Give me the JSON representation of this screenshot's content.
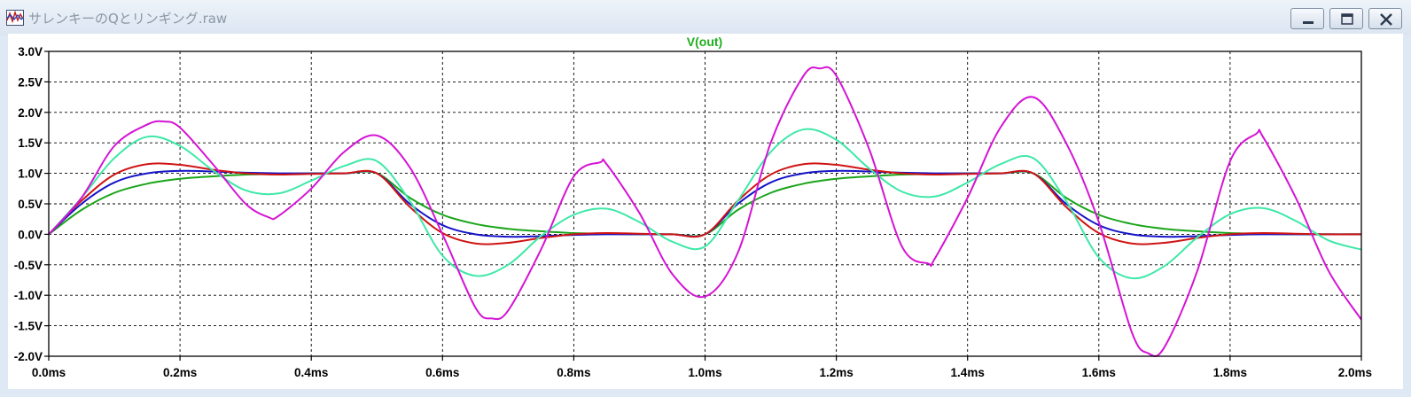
{
  "window": {
    "title": "サレンキーのQとリンギング.raw",
    "buttons": {
      "minimize": "minimize-icon",
      "maximize": "maximize-icon",
      "close": "close-icon"
    }
  },
  "chart_data": {
    "type": "line",
    "title": "V(out)",
    "title_color": "#1fae1f",
    "xlabel": "",
    "ylabel": "",
    "xlim": [
      0,
      2.0
    ],
    "ylim": [
      -2.0,
      3.0
    ],
    "x_ticks": [
      "0.0ms",
      "0.2ms",
      "0.4ms",
      "0.6ms",
      "0.8ms",
      "1.0ms",
      "1.2ms",
      "1.4ms",
      "1.6ms",
      "1.8ms",
      "2.0ms"
    ],
    "y_ticks": [
      "3.0V",
      "2.5V",
      "2.0V",
      "1.5V",
      "1.0V",
      "0.5V",
      "0.0V",
      "-0.5V",
      "-1.0V",
      "-1.5V",
      "-2.0V"
    ],
    "grid": true,
    "series": [
      {
        "color": "#1aa51a",
        "x": [
          0,
          0.05,
          0.1,
          0.15,
          0.2,
          0.25,
          0.3,
          0.35,
          0.4,
          0.45,
          0.5,
          0.55,
          0.6,
          0.65,
          0.7,
          0.75,
          0.8,
          0.85,
          0.9,
          0.95,
          1.0,
          1.05,
          1.1,
          1.15,
          1.2,
          1.25,
          1.3,
          1.35,
          1.4,
          1.45,
          1.5,
          1.55,
          1.6,
          1.65,
          1.7,
          1.75,
          1.8,
          1.85,
          1.9,
          1.95,
          2.0
        ],
        "y": [
          0,
          0.4,
          0.68,
          0.83,
          0.91,
          0.95,
          0.98,
          0.99,
          1.0,
          1.0,
          1.0,
          0.6,
          0.32,
          0.17,
          0.09,
          0.05,
          0.02,
          0.01,
          0.0,
          0.0,
          0.0,
          0.4,
          0.68,
          0.83,
          0.91,
          0.95,
          0.98,
          0.99,
          1.0,
          1.0,
          1.0,
          0.6,
          0.32,
          0.17,
          0.09,
          0.05,
          0.02,
          0.01,
          0.0,
          0.0,
          0.0
        ]
      },
      {
        "color": "#1414c8",
        "x": [
          0,
          0.05,
          0.1,
          0.15,
          0.2,
          0.25,
          0.3,
          0.35,
          0.4,
          0.45,
          0.5,
          0.55,
          0.6,
          0.65,
          0.7,
          0.75,
          0.8,
          0.85,
          0.9,
          0.95,
          1.0,
          1.05,
          1.1,
          1.15,
          1.2,
          1.25,
          1.3,
          1.35,
          1.4,
          1.45,
          1.5,
          1.55,
          1.6,
          1.65,
          1.7,
          1.75,
          1.8,
          1.85,
          1.9,
          1.95,
          2.0
        ],
        "y": [
          0,
          0.5,
          0.85,
          1.0,
          1.04,
          1.03,
          1.01,
          1.0,
          1.0,
          1.0,
          1.0,
          0.5,
          0.15,
          0.0,
          -0.04,
          -0.03,
          -0.01,
          0.0,
          0.0,
          0.0,
          0.0,
          0.5,
          0.85,
          1.0,
          1.04,
          1.03,
          1.01,
          1.0,
          1.0,
          1.0,
          1.0,
          0.5,
          0.15,
          0.0,
          -0.04,
          -0.03,
          -0.01,
          0.0,
          0.0,
          0.0,
          0.0
        ]
      },
      {
        "color": "#d01414",
        "x": [
          0,
          0.05,
          0.1,
          0.15,
          0.2,
          0.25,
          0.3,
          0.35,
          0.4,
          0.45,
          0.5,
          0.55,
          0.6,
          0.65,
          0.7,
          0.75,
          0.8,
          0.85,
          0.9,
          0.95,
          1.0,
          1.05,
          1.1,
          1.15,
          1.2,
          1.25,
          1.3,
          1.35,
          1.4,
          1.45,
          1.5,
          1.55,
          1.6,
          1.65,
          1.7,
          1.75,
          1.8,
          1.85,
          1.9,
          1.95,
          2.0
        ],
        "y": [
          0,
          0.55,
          0.98,
          1.15,
          1.14,
          1.06,
          1.0,
          0.98,
          0.99,
          1.0,
          1.0,
          0.45,
          0.02,
          -0.15,
          -0.14,
          -0.06,
          0.0,
          0.02,
          0.01,
          0.0,
          0.0,
          0.55,
          0.98,
          1.15,
          1.14,
          1.06,
          1.0,
          0.98,
          0.99,
          1.0,
          1.0,
          0.45,
          0.02,
          -0.15,
          -0.14,
          -0.06,
          0.0,
          0.02,
          0.01,
          0.0,
          0.0
        ]
      },
      {
        "color": "#3ee8a8",
        "x": [
          0,
          0.05,
          0.1,
          0.15,
          0.2,
          0.25,
          0.3,
          0.35,
          0.4,
          0.45,
          0.5,
          0.55,
          0.6,
          0.65,
          0.7,
          0.75,
          0.8,
          0.85,
          0.9,
          0.95,
          1.0,
          1.05,
          1.1,
          1.15,
          1.2,
          1.25,
          1.3,
          1.35,
          1.4,
          1.45,
          1.5,
          1.55,
          1.6,
          1.65,
          1.7,
          1.75,
          1.8,
          1.85,
          1.9,
          1.95,
          2.0
        ],
        "y": [
          0,
          0.6,
          1.25,
          1.6,
          1.45,
          1.05,
          0.72,
          0.67,
          0.88,
          1.12,
          1.2,
          0.55,
          -0.35,
          -0.68,
          -0.5,
          -0.03,
          0.32,
          0.42,
          0.2,
          -0.12,
          -0.2,
          0.55,
          1.35,
          1.72,
          1.55,
          1.08,
          0.7,
          0.62,
          0.85,
          1.15,
          1.25,
          0.55,
          -0.38,
          -0.72,
          -0.52,
          -0.05,
          0.33,
          0.43,
          0.22,
          -0.1,
          -0.25
        ]
      },
      {
        "color": "#d414d4",
        "x": [
          0,
          0.05,
          0.1,
          0.15,
          0.175,
          0.2,
          0.25,
          0.3,
          0.335,
          0.35,
          0.4,
          0.45,
          0.5,
          0.55,
          0.6,
          0.65,
          0.675,
          0.7,
          0.75,
          0.8,
          0.84,
          0.85,
          0.9,
          0.95,
          1.0,
          1.05,
          1.1,
          1.15,
          1.175,
          1.2,
          1.25,
          1.3,
          1.34,
          1.35,
          1.4,
          1.45,
          1.5,
          1.55,
          1.6,
          1.65,
          1.675,
          1.7,
          1.75,
          1.8,
          1.84,
          1.85,
          1.9,
          1.95,
          2.0
        ],
        "y": [
          0,
          0.6,
          1.45,
          1.8,
          1.85,
          1.75,
          1.15,
          0.5,
          0.28,
          0.3,
          0.75,
          1.35,
          1.62,
          1.1,
          0.0,
          -1.2,
          -1.38,
          -1.25,
          -0.25,
          0.95,
          1.18,
          1.15,
          0.35,
          -0.65,
          -1.02,
          -0.3,
          1.5,
          2.6,
          2.72,
          2.6,
          1.4,
          -0.2,
          -0.48,
          -0.4,
          0.6,
          1.75,
          2.25,
          1.5,
          0.2,
          -1.6,
          -1.95,
          -1.85,
          -0.6,
          1.2,
          1.65,
          1.6,
          0.6,
          -0.6,
          -1.4
        ]
      }
    ]
  }
}
